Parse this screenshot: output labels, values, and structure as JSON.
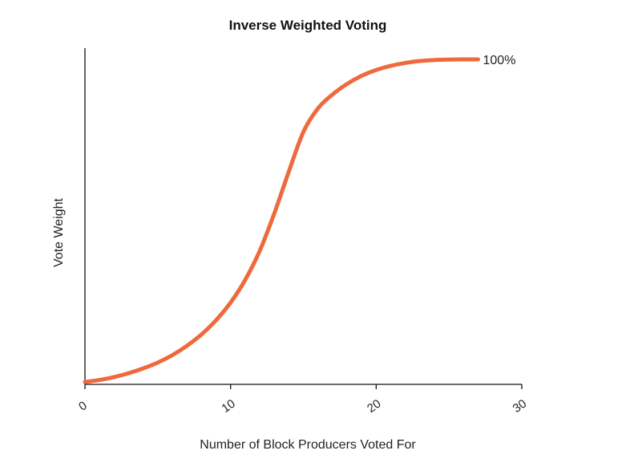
{
  "chart_data": {
    "type": "line",
    "title": "Inverse Weighted Voting",
    "xlabel": "Number of Block Producers Voted For",
    "ylabel": "Vote Weight",
    "xlim": [
      0,
      30
    ],
    "ylim": [
      0,
      100
    ],
    "x_ticks": [
      "0",
      "10",
      "20",
      "30"
    ],
    "grid": false,
    "legend": "none",
    "line_color": "#EE6A3D",
    "end_label": "100%",
    "series": [
      {
        "x": [
          0,
          1,
          2,
          3,
          4,
          5,
          6,
          7,
          8,
          9,
          10,
          11,
          12,
          13,
          14,
          15,
          16,
          17,
          18,
          19,
          20,
          21,
          22,
          23,
          24,
          25,
          26,
          27
        ],
        "values": [
          0,
          0.6,
          1.5,
          2.7,
          4.2,
          6.0,
          8.3,
          11.2,
          14.7,
          19.1,
          24.6,
          31.6,
          40.6,
          52.2,
          65.2,
          77.5,
          84.8,
          89.1,
          92.4,
          94.9,
          96.7,
          98.0,
          98.9,
          99.5,
          99.8,
          99.95,
          100,
          100
        ]
      }
    ]
  }
}
